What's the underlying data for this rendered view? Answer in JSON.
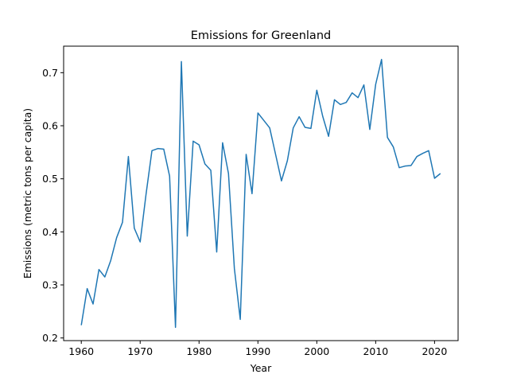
{
  "chart_data": {
    "type": "line",
    "title": "Emissions for Greenland",
    "xlabel": "Year",
    "ylabel": "Emissions (metric tons per capita)",
    "xlim": [
      1957,
      2024
    ],
    "ylim": [
      0.195,
      0.75
    ],
    "xticks": [
      1960,
      1970,
      1980,
      1990,
      2000,
      2010,
      2020
    ],
    "yticks": [
      0.2,
      0.3,
      0.4,
      0.5,
      0.6,
      0.7
    ],
    "grid": false,
    "series": [
      {
        "color": "#1f77b4",
        "x": [
          1960,
          1961,
          1962,
          1963,
          1964,
          1965,
          1966,
          1967,
          1968,
          1969,
          1970,
          1971,
          1972,
          1973,
          1974,
          1975,
          1976,
          1977,
          1978,
          1979,
          1980,
          1981,
          1982,
          1983,
          1984,
          1985,
          1986,
          1987,
          1988,
          1989,
          1990,
          1991,
          1992,
          1993,
          1994,
          1995,
          1996,
          1997,
          1998,
          1999,
          2000,
          2001,
          2002,
          2003,
          2004,
          2005,
          2006,
          2007,
          2008,
          2009,
          2010,
          2011,
          2012,
          2013,
          2014,
          2015,
          2016,
          2017,
          2018,
          2019,
          2020,
          2021
        ],
        "y": [
          0.224,
          0.293,
          0.264,
          0.329,
          0.315,
          0.346,
          0.389,
          0.418,
          0.542,
          0.407,
          0.381,
          0.471,
          0.553,
          0.557,
          0.556,
          0.505,
          0.22,
          0.721,
          0.392,
          0.571,
          0.564,
          0.528,
          0.516,
          0.362,
          0.568,
          0.51,
          0.331,
          0.235,
          0.546,
          0.472,
          0.624,
          0.61,
          0.596,
          0.546,
          0.496,
          0.534,
          0.596,
          0.617,
          0.597,
          0.595,
          0.667,
          0.618,
          0.58,
          0.649,
          0.64,
          0.644,
          0.662,
          0.653,
          0.677,
          0.593,
          0.678,
          0.725,
          0.578,
          0.56,
          0.521,
          0.524,
          0.525,
          0.542,
          0.548,
          0.553,
          0.501,
          0.51
        ]
      }
    ]
  }
}
